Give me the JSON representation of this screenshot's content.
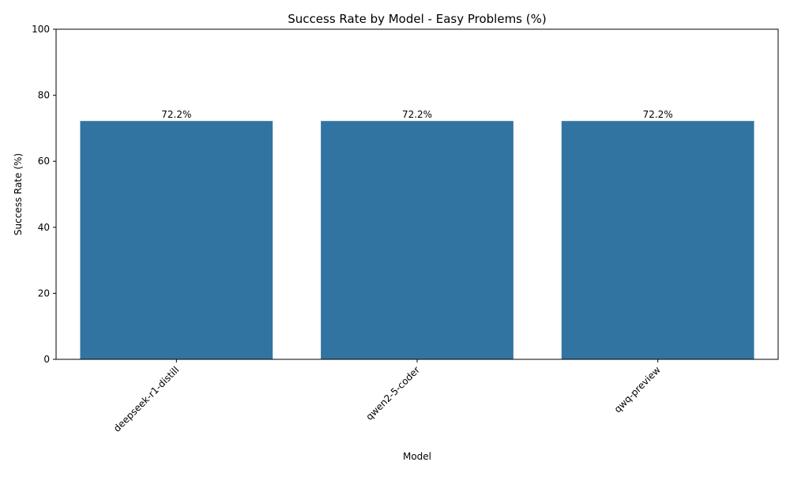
{
  "chart_data": {
    "type": "bar",
    "title": "Success Rate by Model - Easy Problems (%)",
    "xlabel": "Model",
    "ylabel": "Success Rate (%)",
    "categories": [
      "deepseek-r1-distill",
      "qwen2-5-coder",
      "qwq-preview"
    ],
    "values": [
      72.2,
      72.2,
      72.2
    ],
    "data_labels": [
      "72.2%",
      "72.2%",
      "72.2%"
    ],
    "ylim": [
      0,
      100
    ],
    "yticks": [
      0,
      20,
      40,
      60,
      80,
      100
    ],
    "ytick_labels": [
      "0",
      "20",
      "40",
      "60",
      "80",
      "100"
    ],
    "x_tick_rotation": 45,
    "grid": false,
    "legend": "none",
    "bar_color": "#3274a1"
  }
}
